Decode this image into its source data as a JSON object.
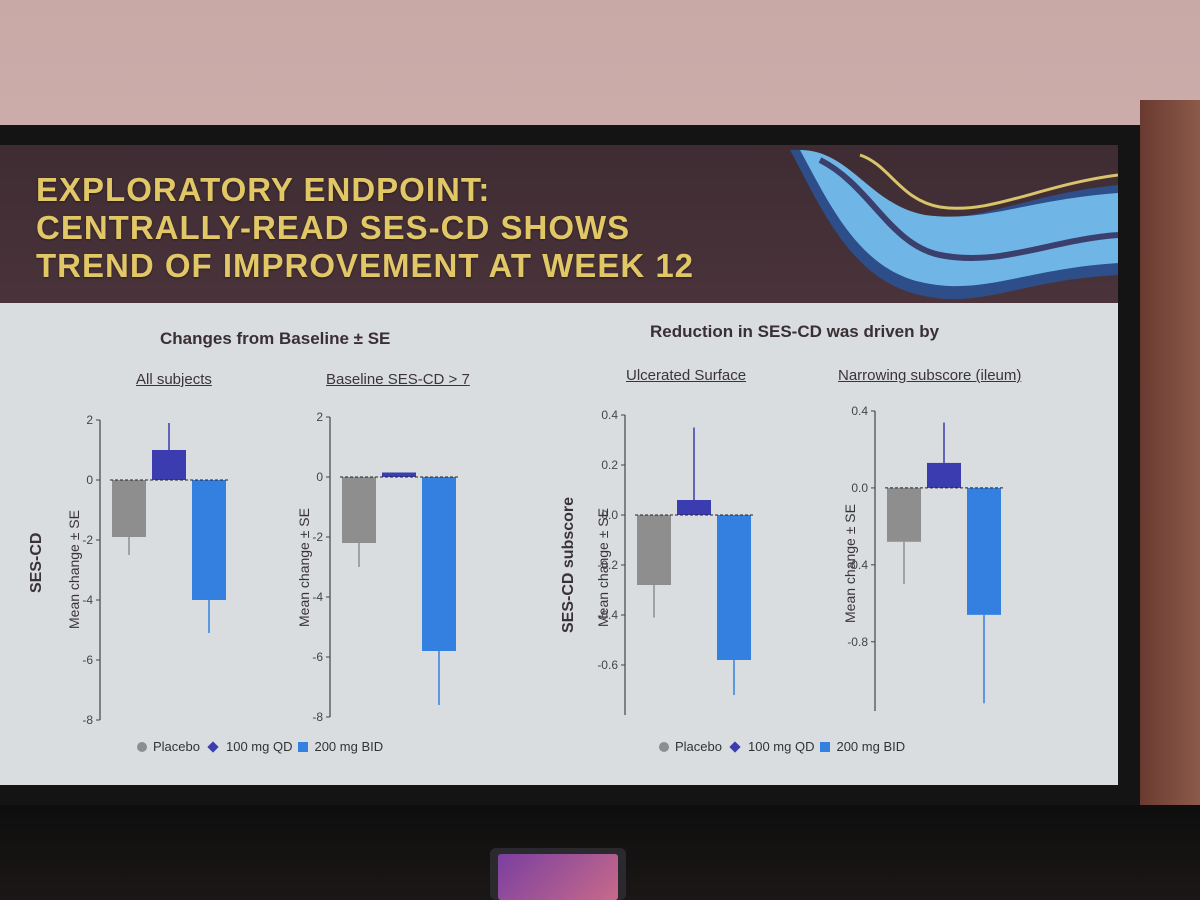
{
  "slide": {
    "title_lines": [
      "EXPLORATORY ENDPOINT:",
      "CENTRALLY-READ SES-CD SHOWS",
      "TREND OF IMPROVEMENT AT WEEK 12"
    ],
    "left_heading": "Changes from Baseline ± SE",
    "right_heading": "Reduction in SES-CD was driven by",
    "left_axis_title": "SES-CD",
    "right_axis_title": "SES-CD subscore"
  },
  "legend": {
    "placebo": "Placebo",
    "qd": "100 mg QD",
    "bid": "200 mg BID"
  },
  "colors": {
    "placebo": "#8e8e8e",
    "qd": "#3b3cb0",
    "bid": "#3380e0",
    "title": "#e2c767"
  },
  "chart_data": [
    {
      "type": "bar",
      "title": "All subjects",
      "ylabel": "Mean change ± SE",
      "categories": [
        "Placebo",
        "100 mg QD",
        "200 mg BID"
      ],
      "values": [
        -1.9,
        1.0,
        -4.0
      ],
      "errors": [
        0.6,
        0.9,
        1.1
      ],
      "ylim": [
        -8,
        2
      ],
      "ticks": [
        2,
        0,
        -2,
        -4,
        -6,
        -8
      ],
      "tick_labels": [
        "2",
        "0",
        "-2",
        "-4",
        "-6",
        "-8"
      ]
    },
    {
      "type": "bar",
      "title": "Baseline SES-CD > 7",
      "ylabel": "Mean change ± SE",
      "categories": [
        "Placebo",
        "100 mg QD",
        "200 mg BID"
      ],
      "values": [
        -2.2,
        0.15,
        -5.8
      ],
      "errors": [
        0.8,
        0.0,
        1.8
      ],
      "ylim": [
        -8,
        2
      ],
      "ticks": [
        2,
        0,
        -2,
        -4,
        -6,
        -8
      ],
      "tick_labels": [
        "2",
        "0",
        "-2",
        "-4",
        "-6",
        "-8"
      ]
    },
    {
      "type": "bar",
      "title": "Ulcerated Surface",
      "ylabel": "Mean change ± SE",
      "categories": [
        "Placebo",
        "100 mg QD",
        "200 mg BID"
      ],
      "values": [
        -0.28,
        0.06,
        -0.58
      ],
      "errors": [
        0.13,
        0.29,
        0.14
      ],
      "ylim": [
        -0.8,
        0.4
      ],
      "ticks": [
        0.4,
        0.2,
        0.0,
        -0.2,
        -0.4,
        -0.6
      ],
      "tick_labels": [
        "0.4",
        "0.2",
        "0.0",
        "-0.2",
        "-0.4",
        "-0.6"
      ]
    },
    {
      "type": "bar",
      "title": "Narrowing subscore (ileum)",
      "ylabel": "Mean change ± SE",
      "categories": [
        "Placebo",
        "100 mg QD",
        "200 mg BID"
      ],
      "values": [
        -0.28,
        0.13,
        -0.66
      ],
      "errors": [
        0.22,
        0.21,
        0.46
      ],
      "ylim": [
        -1.16,
        0.4
      ],
      "ticks": [
        0.4,
        0.0,
        -0.4,
        -0.8
      ],
      "tick_labels": [
        "0.4",
        "0.0",
        "-0.4",
        "-0.8"
      ]
    }
  ]
}
